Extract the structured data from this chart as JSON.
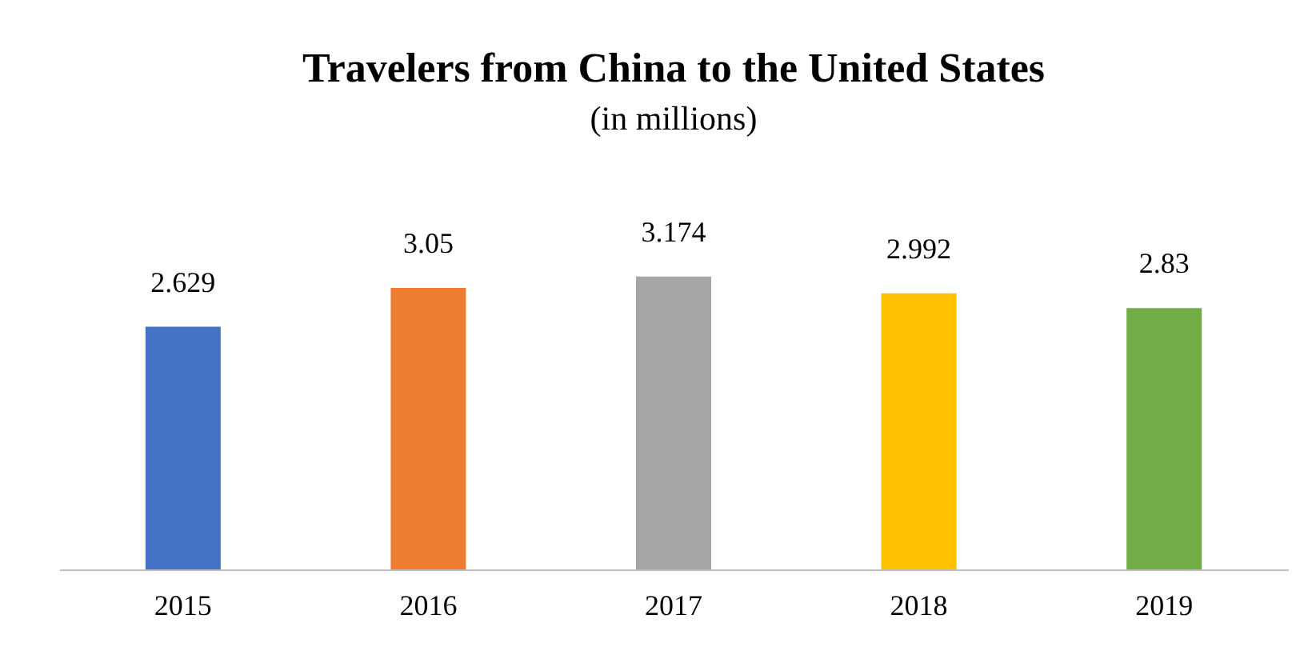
{
  "chart_data": {
    "type": "bar",
    "title": "Travelers from China to the United States",
    "subtitle": "(in millions)",
    "categories": [
      "2015",
      "2016",
      "2017",
      "2018",
      "2019"
    ],
    "values": [
      2.629,
      3.05,
      3.174,
      2.992,
      2.83
    ],
    "colors": [
      "#4472c4",
      "#ed7d31",
      "#a5a5a5",
      "#ffc000",
      "#70ad47"
    ],
    "data_labels": true
  }
}
